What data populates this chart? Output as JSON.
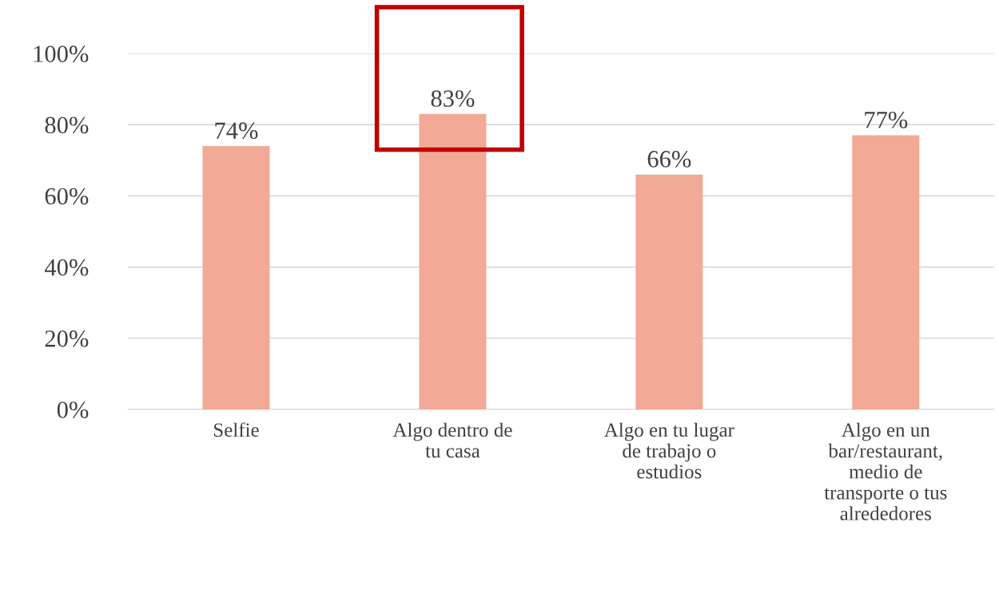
{
  "chart_data": {
    "type": "bar",
    "categories": [
      "Selfie",
      "Algo dentro de tu casa",
      "Algo en tu lugar de trabajo o estudios",
      "Algo en un bar/restaurant, medio de transporte o tus alrededores"
    ],
    "values": [
      74,
      83,
      66,
      77
    ],
    "color": "#f2a996",
    "data_labels": true,
    "value_labels": [
      "74%",
      "83%",
      "66%",
      "77%"
    ],
    "ylim": [
      0,
      100
    ],
    "yticks": [
      {
        "value": 0,
        "label": "0%"
      },
      {
        "value": 20,
        "label": "20%"
      },
      {
        "value": 40,
        "label": "40%"
      },
      {
        "value": 60,
        "label": "60%"
      },
      {
        "value": 80,
        "label": "80%"
      },
      {
        "value": 100,
        "label": "100%"
      }
    ],
    "grid": "y",
    "legend": false
  }
}
